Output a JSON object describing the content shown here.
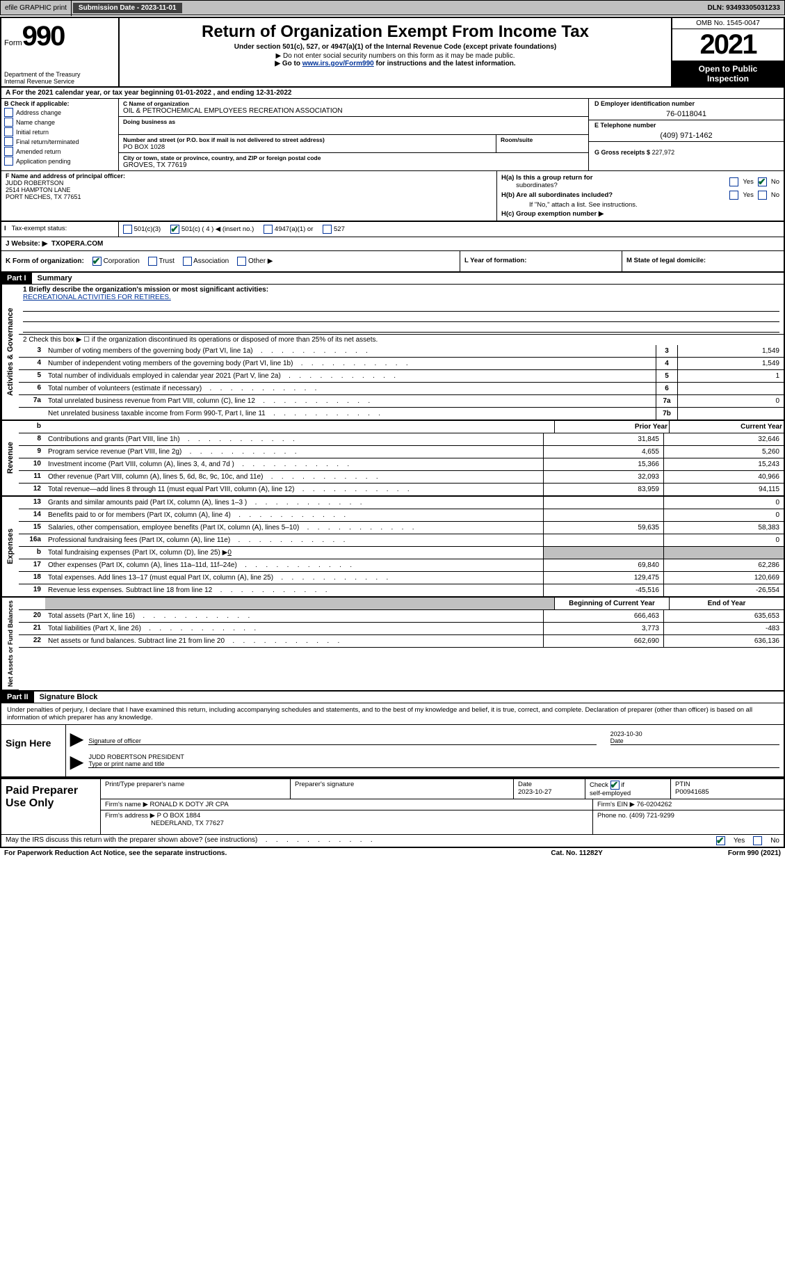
{
  "topbar": {
    "efile": "efile GRAPHIC print",
    "submission_label": "Submission Date - 2023-11-01",
    "dln_label": "DLN: 93493305031233"
  },
  "header": {
    "form_word": "Form",
    "form_num": "990",
    "dept1": "Department of the Treasury",
    "dept2": "Internal Revenue Service",
    "title": "Return of Organization Exempt From Income Tax",
    "sub1": "Under section 501(c), 527, or 4947(a)(1) of the Internal Revenue Code (except private foundations)",
    "sub2": "▶ Do not enter social security numbers on this form as it may be made public.",
    "sub3_pre": "▶ Go to ",
    "sub3_link": "www.irs.gov/Form990",
    "sub3_post": " for instructions and the latest information.",
    "omb": "OMB No. 1545-0047",
    "year": "2021",
    "inspect1": "Open to Public",
    "inspect2": "Inspection"
  },
  "row_a": {
    "text": "A For the 2021 calendar year, or tax year beginning 01-01-2022   , and ending 12-31-2022"
  },
  "box_b": {
    "label": "B Check if applicable:",
    "opts": [
      "Address change",
      "Name change",
      "Initial return",
      "Final return/terminated",
      "Amended return",
      "Application pending"
    ]
  },
  "box_c": {
    "name_lbl": "C Name of organization",
    "name_val": "OIL & PETROCHEMICAL EMPLOYEES RECREATION ASSOCIATION",
    "dba_lbl": "Doing business as",
    "addr_lbl": "Number and street (or P.O. box if mail is not delivered to street address)",
    "addr_val": "PO BOX 1028",
    "suite_lbl": "Room/suite",
    "city_lbl": "City or town, state or province, country, and ZIP or foreign postal code",
    "city_val": "GROVES, TX  77619"
  },
  "box_de": {
    "d_lbl": "D Employer identification number",
    "d_val": "76-0118041",
    "e_lbl": "E Telephone number",
    "e_val": "(409) 971-1462",
    "g_lbl": "G Gross receipts $",
    "g_val": "227,972"
  },
  "box_f": {
    "lbl": "F Name and address of principal officer:",
    "name": "JUDD ROBERTSON",
    "addr1": "2514 HAMPTON LANE",
    "addr2": "PORT NECHES, TX  77651"
  },
  "box_h": {
    "ha1": "H(a)  Is this a group return for",
    "ha2": "subordinates?",
    "hb1": "H(b)  Are all subordinates included?",
    "hb2": "If \"No,\" attach a list. See instructions.",
    "hc": "H(c)  Group exemption number ▶",
    "yes": "Yes",
    "no": "No"
  },
  "row_i": {
    "lbl": "Tax-exempt status:",
    "o1": "501(c)(3)",
    "o2": "501(c) ( 4 ) ◀ (insert no.)",
    "o3": "4947(a)(1) or",
    "o4": "527"
  },
  "row_j": {
    "lbl": "J   Website: ▶",
    "val": "TXOPERA.COM"
  },
  "row_k": {
    "lbl": "K Form of organization:",
    "o1": "Corporation",
    "o2": "Trust",
    "o3": "Association",
    "o4": "Other ▶",
    "l_lbl": "L Year of formation:",
    "m_lbl": "M State of legal domicile:"
  },
  "parts": {
    "p1": "Part I",
    "p1t": "Summary",
    "p2": "Part II",
    "p2t": "Signature Block"
  },
  "vtabs": {
    "gov": "Activities & Governance",
    "rev": "Revenue",
    "exp": "Expenses",
    "net": "Net Assets or Fund Balances"
  },
  "briefly": {
    "l1_lbl": "1   Briefly describe the organization's mission or most significant activities:",
    "l1_val": "RECREATIONAL ACTIVITIES FOR RETIREES.",
    "l2": "2   Check this box ▶ ☐  if the organization discontinued its operations or disposed of more than 25% of its net assets."
  },
  "gov_lines": [
    {
      "n": "3",
      "d": "Number of voting members of the governing body (Part VI, line 1a)",
      "cn": "3",
      "v": "1,549"
    },
    {
      "n": "4",
      "d": "Number of independent voting members of the governing body (Part VI, line 1b)",
      "cn": "4",
      "v": "1,549"
    },
    {
      "n": "5",
      "d": "Total number of individuals employed in calendar year 2021 (Part V, line 2a)",
      "cn": "5",
      "v": "1"
    },
    {
      "n": "6",
      "d": "Total number of volunteers (estimate if necessary)",
      "cn": "6",
      "v": ""
    },
    {
      "n": "7a",
      "d": "Total unrelated business revenue from Part VIII, column (C), line 12",
      "cn": "7a",
      "v": "0"
    },
    {
      "n": "",
      "d": "Net unrelated business taxable income from Form 990-T, Part I, line 11",
      "cn": "7b",
      "v": ""
    }
  ],
  "two_hdr": {
    "b": "b",
    "prior": "Prior Year",
    "curr": "Current Year",
    "boc": "Beginning of Current Year",
    "eoy": "End of Year"
  },
  "rev_lines": [
    {
      "n": "8",
      "d": "Contributions and grants (Part VIII, line 1h)",
      "p": "31,845",
      "c": "32,646"
    },
    {
      "n": "9",
      "d": "Program service revenue (Part VIII, line 2g)",
      "p": "4,655",
      "c": "5,260"
    },
    {
      "n": "10",
      "d": "Investment income (Part VIII, column (A), lines 3, 4, and 7d )",
      "p": "15,366",
      "c": "15,243"
    },
    {
      "n": "11",
      "d": "Other revenue (Part VIII, column (A), lines 5, 6d, 8c, 9c, 10c, and 11e)",
      "p": "32,093",
      "c": "40,966"
    },
    {
      "n": "12",
      "d": "Total revenue—add lines 8 through 11 (must equal Part VIII, column (A), line 12)",
      "p": "83,959",
      "c": "94,115"
    }
  ],
  "exp_lines": [
    {
      "n": "13",
      "d": "Grants and similar amounts paid (Part IX, column (A), lines 1–3 )",
      "p": "",
      "c": "0"
    },
    {
      "n": "14",
      "d": "Benefits paid to or for members (Part IX, column (A), line 4)",
      "p": "",
      "c": "0"
    },
    {
      "n": "15",
      "d": "Salaries, other compensation, employee benefits (Part IX, column (A), lines 5–10)",
      "p": "59,635",
      "c": "58,383"
    },
    {
      "n": "16a",
      "d": "Professional fundraising fees (Part IX, column (A), line 11e)",
      "p": "",
      "c": "0"
    }
  ],
  "exp_b": {
    "n": "b",
    "d": "Total fundraising expenses (Part IX, column (D), line 25) ▶",
    "v": "0"
  },
  "exp_lines2": [
    {
      "n": "17",
      "d": "Other expenses (Part IX, column (A), lines 11a–11d, 11f–24e)",
      "p": "69,840",
      "c": "62,286"
    },
    {
      "n": "18",
      "d": "Total expenses. Add lines 13–17 (must equal Part IX, column (A), line 25)",
      "p": "129,475",
      "c": "120,669"
    },
    {
      "n": "19",
      "d": "Revenue less expenses. Subtract line 18 from line 12",
      "p": "-45,516",
      "c": "-26,554"
    }
  ],
  "net_lines": [
    {
      "n": "20",
      "d": "Total assets (Part X, line 16)",
      "p": "666,463",
      "c": "635,653"
    },
    {
      "n": "21",
      "d": "Total liabilities (Part X, line 26)",
      "p": "3,773",
      "c": "-483"
    },
    {
      "n": "22",
      "d": "Net assets or fund balances. Subtract line 21 from line 20",
      "p": "662,690",
      "c": "636,136"
    }
  ],
  "sig": {
    "penalties": "Under penalties of perjury, I declare that I have examined this return, including accompanying schedules and statements, and to the best of my knowledge and belief, it is true, correct, and complete. Declaration of preparer (other than officer) is based on all information of which preparer has any knowledge.",
    "sign_here": "Sign Here",
    "sig_of_officer": "Signature of officer",
    "date": "Date",
    "sig_date": "2023-10-30",
    "officer_name": "JUDD ROBERTSON  PRESIDENT",
    "type_name": "Type or print name and title"
  },
  "paid": {
    "title": "Paid Preparer Use Only",
    "h_name": "Print/Type preparer's name",
    "h_sig": "Preparer's signature",
    "h_date": "Date",
    "date_val": "2023-10-27",
    "h_check": "Check ☑ if self-employed",
    "h_ptin": "PTIN",
    "ptin_val": "P00941685",
    "firm_name_lbl": "Firm's name    ▶",
    "firm_name_val": "RONALD K DOTY JR CPA",
    "firm_ein_lbl": "Firm's EIN ▶",
    "firm_ein_val": "76-0204262",
    "firm_addr_lbl": "Firm's address ▶",
    "firm_addr_val1": "P O BOX 1884",
    "firm_addr_val2": "NEDERLAND, TX  77627",
    "phone_lbl": "Phone no.",
    "phone_val": "(409) 721-9299"
  },
  "footer": {
    "discuss": "May the IRS discuss this return with the preparer shown above? (see instructions)",
    "yes": "Yes",
    "no": "No",
    "pra": "For Paperwork Reduction Act Notice, see the separate instructions.",
    "cat": "Cat. No. 11282Y",
    "form": "Form 990 (2021)"
  },
  "colors": {
    "link": "#003399",
    "check_green": "#006633",
    "gray_bg": "#c0c0c0"
  }
}
